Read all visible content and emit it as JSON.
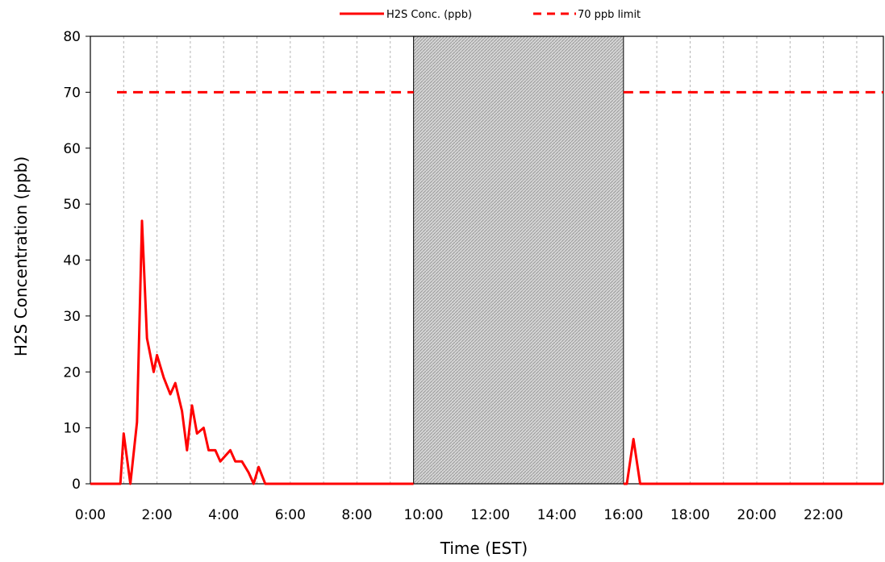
{
  "chart_data": {
    "type": "line",
    "title": "",
    "xlabel": "Time (EST)",
    "ylabel": "H2S Concentration (ppb)",
    "xlim": [
      0,
      23.8
    ],
    "ylim": [
      0,
      80
    ],
    "yticks": [
      0,
      10,
      20,
      30,
      40,
      50,
      60,
      70,
      80
    ],
    "xtick_values": [
      0,
      2,
      4,
      6,
      8,
      10,
      12,
      14,
      16,
      18,
      20,
      22
    ],
    "xtick_labels": [
      "0:00",
      "2:00",
      "4:00",
      "6:00",
      "8:00",
      "10:00",
      "12:00",
      "14:00",
      "16:00",
      "18:00",
      "20:00",
      "22:00"
    ],
    "grid": "vertical dashed every hour",
    "legend_position": "top",
    "shaded_region": {
      "x_start": 9.7,
      "x_end": 16.0,
      "fill": "hatched gray"
    },
    "series": [
      {
        "name": "H2S Conc. (ppb)",
        "style": "solid",
        "color": "#ff0000",
        "points": [
          [
            0,
            0
          ],
          [
            0.9,
            0
          ],
          [
            1.0,
            9
          ],
          [
            1.2,
            0
          ],
          [
            1.4,
            11
          ],
          [
            1.55,
            47
          ],
          [
            1.7,
            26
          ],
          [
            1.9,
            20
          ],
          [
            2.0,
            23
          ],
          [
            2.2,
            19
          ],
          [
            2.4,
            16
          ],
          [
            2.55,
            18
          ],
          [
            2.75,
            13
          ],
          [
            2.9,
            6
          ],
          [
            3.05,
            14
          ],
          [
            3.2,
            9
          ],
          [
            3.4,
            10
          ],
          [
            3.55,
            6
          ],
          [
            3.75,
            6
          ],
          [
            3.9,
            4
          ],
          [
            4.2,
            6
          ],
          [
            4.35,
            4
          ],
          [
            4.55,
            4
          ],
          [
            4.75,
            2
          ],
          [
            4.9,
            0
          ],
          [
            5.05,
            3
          ],
          [
            5.25,
            0
          ],
          [
            9.7,
            0
          ],
          [
            16.0,
            0
          ],
          [
            16.1,
            0
          ],
          [
            16.3,
            8
          ],
          [
            16.5,
            0
          ],
          [
            23.8,
            0
          ]
        ]
      },
      {
        "name": "70 ppb limit",
        "style": "dashed",
        "color": "#ff0000",
        "segments": [
          [
            0.8,
            9.7
          ],
          [
            16.0,
            23.8
          ]
        ],
        "value": 70
      }
    ]
  }
}
